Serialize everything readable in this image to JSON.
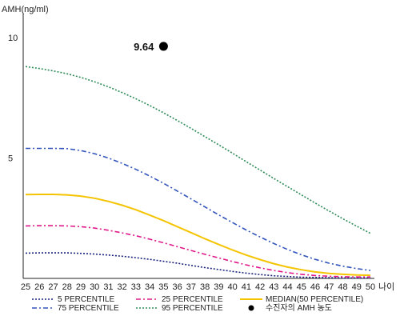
{
  "chart_data": {
    "type": "line",
    "ylabel": "AMH(ng/ml)",
    "xlabel": "나이",
    "xlim": [
      25,
      50
    ],
    "ylim": [
      0,
      11
    ],
    "x": [
      25,
      26,
      27,
      28,
      29,
      30,
      31,
      32,
      33,
      34,
      35,
      36,
      37,
      38,
      39,
      40,
      41,
      42,
      43,
      44,
      45,
      46,
      47,
      48,
      49,
      50
    ],
    "x_tick_labels": [
      "25",
      "26",
      "27",
      "28",
      "29",
      "30",
      "31",
      "32",
      "33",
      "34",
      "35",
      "36",
      "37",
      "38",
      "39",
      "40",
      "41",
      "42",
      "43",
      "44",
      "45",
      "46",
      "47",
      "48",
      "49",
      "50"
    ],
    "y_ticks": [
      5,
      10
    ],
    "y_tick_labels": [
      "5",
      "10"
    ],
    "series": [
      {
        "name": "5 PERCENTILE",
        "color": "#1a237e",
        "style": "dotted",
        "values": [
          1.05,
          1.06,
          1.06,
          1.06,
          1.04,
          1.01,
          0.97,
          0.92,
          0.86,
          0.79,
          0.71,
          0.63,
          0.54,
          0.45,
          0.37,
          0.29,
          0.22,
          0.16,
          0.11,
          0.08,
          0.05,
          0.04,
          0.03,
          0.02,
          0.02,
          0.02
        ]
      },
      {
        "name": "25 PERCENTILE",
        "color": "#e0188a",
        "style": "dashdot",
        "values": [
          2.18,
          2.19,
          2.19,
          2.18,
          2.15,
          2.09,
          2.0,
          1.89,
          1.77,
          1.63,
          1.48,
          1.32,
          1.16,
          1.0,
          0.85,
          0.7,
          0.56,
          0.44,
          0.33,
          0.24,
          0.17,
          0.12,
          0.09,
          0.07,
          0.06,
          0.06
        ]
      },
      {
        "name": "MEDIAN(50 PERCENTILE)",
        "color": "#f5c400",
        "style": "solid",
        "values": [
          3.48,
          3.49,
          3.49,
          3.47,
          3.42,
          3.33,
          3.2,
          3.04,
          2.85,
          2.63,
          2.4,
          2.15,
          1.9,
          1.65,
          1.41,
          1.18,
          0.97,
          0.78,
          0.61,
          0.47,
          0.36,
          0.27,
          0.21,
          0.17,
          0.14,
          0.13
        ]
      },
      {
        "name": "75 PERCENTILE",
        "color": "#3355bb",
        "style": "dashdot",
        "values": [
          5.4,
          5.4,
          5.4,
          5.39,
          5.31,
          5.18,
          5.0,
          4.78,
          4.53,
          4.25,
          3.95,
          3.63,
          3.3,
          2.97,
          2.64,
          2.32,
          2.01,
          1.72,
          1.45,
          1.2,
          0.98,
          0.79,
          0.63,
          0.51,
          0.41,
          0.33
        ]
      },
      {
        "name": "95 PERCENTILE",
        "color": "#2e8b57",
        "style": "dotted",
        "values": [
          8.8,
          8.72,
          8.62,
          8.5,
          8.35,
          8.17,
          7.96,
          7.72,
          7.46,
          7.18,
          6.88,
          6.56,
          6.23,
          5.89,
          5.55,
          5.2,
          4.85,
          4.5,
          4.15,
          3.81,
          3.47,
          3.13,
          2.8,
          2.48,
          2.17,
          1.87
        ]
      }
    ],
    "points": [
      {
        "name": "수진자의 AMH 농도",
        "x": 35,
        "y": 9.64,
        "label": "9.64",
        "color": "#000000"
      }
    ],
    "grid": false,
    "legend_position": "bottom"
  }
}
